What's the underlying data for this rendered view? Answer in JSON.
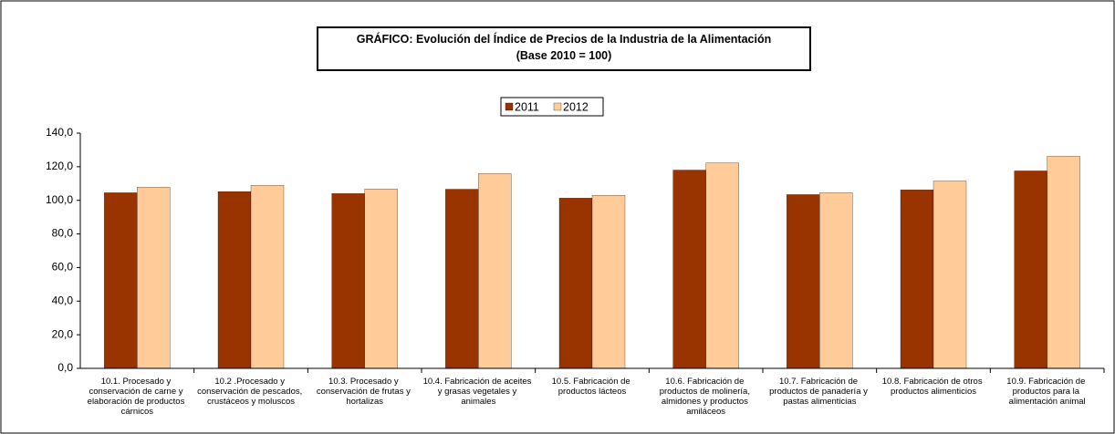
{
  "chart_data": {
    "type": "bar",
    "title": "GRÁFICO: Evolución del Índice de Precios de la Industria de la Alimentación",
    "subtitle": "(Base 2010 = 100)",
    "categories": [
      "10.1. Procesado y conservación de carne y elaboración de productos cárnicos",
      "10.2 .Procesado y conservación de pescados, crustáceos y moluscos",
      "10.3. Procesado y conservación de frutas y hortalizas",
      "10.4. Fabricación de aceites y grasas vegetales y animales",
      "10.5. Fabricación de productos lácteos",
      "10.6. Fabricación de productos de molinería, almidones y productos amiláceos",
      "10.7. Fabricación de productos de panadería y pastas alimenticias",
      "10.8. Fabricación de otros productos alimenticios",
      "10.9. Fabricación de productos para la alimentación animal"
    ],
    "series": [
      {
        "name": "2011",
        "color": "#993300",
        "values": [
          104.5,
          105.2,
          104.0,
          106.6,
          101.3,
          118.0,
          103.4,
          106.2,
          117.5
        ]
      },
      {
        "name": "2012",
        "color": "#ffcc99",
        "values": [
          107.8,
          108.9,
          106.7,
          115.9,
          103.0,
          122.3,
          104.5,
          111.5,
          126.2
        ]
      }
    ],
    "ylim": [
      0,
      140
    ],
    "yticks": [
      {
        "value": 0,
        "label": "0,0"
      },
      {
        "value": 20,
        "label": "20,0"
      },
      {
        "value": 40,
        "label": "40,0"
      },
      {
        "value": 60,
        "label": "60,0"
      },
      {
        "value": 80,
        "label": "80,0"
      },
      {
        "value": 100,
        "label": "100,0"
      },
      {
        "value": 120,
        "label": "120,0"
      },
      {
        "value": 140,
        "label": "140,0"
      }
    ],
    "grid": false,
    "legend": "top"
  }
}
